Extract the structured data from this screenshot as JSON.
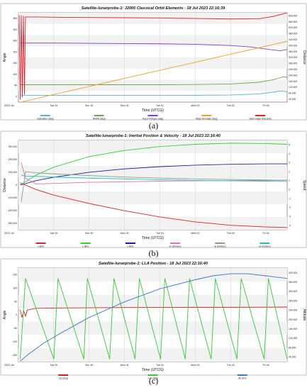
{
  "captions": [
    "(a)",
    "(b)",
    "(c)"
  ],
  "chart_data": [
    {
      "type": "line",
      "title": "Satellite-lunarprobe-1:  J2000 Classical Orbit Elements - 18 Jul 2023 22:16:39",
      "xlabel": "Time (UTCG)",
      "ylabel": "Angle",
      "y2label": "Distance",
      "year_label": "2023 Jul",
      "x_ticks": [
        "Sat 29",
        "Sun 30",
        "Mon 31",
        "Tue 01",
        "Wed 02",
        "Thu 03",
        "Fri 04"
      ],
      "y_ticks": [
        "0",
        "50",
        "100",
        "150",
        "200",
        "250",
        "300",
        "350"
      ],
      "y2_ticks": [
        "40,000",
        "80,000",
        "120,000",
        "160,000",
        "200,000",
        "240,000",
        "280,000",
        "320,000",
        "360,000",
        "400,000",
        "440,000",
        "480,000",
        "520,000",
        "560,000",
        "600,000"
      ],
      "xlim": [
        0,
        7.6
      ],
      "ylim": [
        0,
        360
      ],
      "grid": true,
      "legend_position": "bottom",
      "series": [
        {
          "name": "Inclination (deg)",
          "color": "#4fb4e0",
          "x": [
            0.05,
            0.4,
            1,
            2,
            3,
            4,
            5,
            6,
            6.8,
            7.2,
            7.4,
            7.6
          ],
          "y": [
            28,
            27,
            27,
            27,
            27,
            27,
            27.5,
            28.5,
            33,
            40,
            45,
            42
          ]
        },
        {
          "name": "RAAN (deg)",
          "color": "#6aa84f",
          "x": [
            0.05,
            0.4,
            1,
            2,
            3,
            4,
            5,
            6,
            6.8,
            7.2,
            7.5,
            7.6
          ],
          "y": [
            70,
            70,
            70,
            70,
            70,
            70,
            71,
            73,
            80,
            90,
            102,
            100
          ]
        },
        {
          "name": "Arg of Perigee (deg)",
          "color": "#7e3fc4",
          "x": [
            0.05,
            0.4,
            1,
            2,
            3,
            4,
            5,
            6,
            6.6,
            7.1,
            7.4,
            7.6
          ],
          "y": [
            238,
            238,
            238,
            237,
            236,
            235,
            233,
            228,
            222,
            212,
            207,
            212
          ]
        },
        {
          "name": "Mean Anomaly (deg)",
          "color": "#f0a020",
          "x": [
            0.12,
            7.6
          ],
          "y": [
            2,
            245
          ]
        },
        {
          "name": "Semi-major Axis (km)",
          "color": "#e0202a",
          "axis": "right",
          "x": [
            0.02,
            0.05,
            0.08,
            0.11,
            0.14,
            0.17,
            0.2,
            0.5,
            1,
            2,
            3,
            4,
            5,
            6,
            6.8,
            7.2,
            7.6
          ],
          "y": [
            350,
            10,
            350,
            20,
            348,
            30,
            343,
            343,
            342,
            341,
            340,
            339,
            337,
            335,
            336,
            345,
            360
          ]
        }
      ]
    },
    {
      "type": "line",
      "title": "Satellite-lunarprobe-1:  Inertial Position & Velocity - 18 Jul 2023 22:16:40",
      "xlabel": "Time (UTCG)",
      "ylabel": "Distance",
      "y2label": "Speed",
      "year_label": "2023 Jul",
      "x_ticks": [
        "Sat 29",
        "Sun 30",
        "Mon 31",
        "Tue 01",
        "Wed 02",
        "Thu 03",
        "Fri 04"
      ],
      "y_ticks": [
        "-300,000",
        "-200,000",
        "-100,000",
        "0",
        "100,000",
        "200,000",
        "300,000"
      ],
      "y2_ticks": [
        "-4",
        "-3",
        "-2",
        "-1",
        "0",
        "1",
        "2",
        "3",
        "4",
        "5"
      ],
      "xlim": [
        0,
        7.6
      ],
      "ylim": [
        -400000,
        400000
      ],
      "grid": true,
      "legend_position": "bottom",
      "series": [
        {
          "name": "x (km)",
          "color": "#e02020",
          "x": [
            0.05,
            0.5,
            1,
            2,
            3,
            4,
            5,
            6,
            7,
            7.6
          ],
          "y": [
            20000,
            -40000,
            -90000,
            -165000,
            -230000,
            -285000,
            -330000,
            -360000,
            -375000,
            -380000
          ]
        },
        {
          "name": "y (km)",
          "color": "#33d033",
          "x": [
            0.05,
            0.5,
            1,
            2,
            3,
            4,
            5,
            6,
            7,
            7.6
          ],
          "y": [
            0,
            90000,
            160000,
            255000,
            310000,
            345000,
            365000,
            375000,
            372000,
            365000
          ]
        },
        {
          "name": "z (km)",
          "color": "#1a1aa0",
          "x": [
            0.05,
            0.5,
            1,
            2,
            3,
            4,
            5,
            6,
            7,
            7.6
          ],
          "y": [
            0,
            40000,
            70000,
            115000,
            145000,
            165000,
            178000,
            186000,
            190000,
            190000
          ]
        },
        {
          "name": "vx (km/sec)",
          "color": "#e070b0",
          "x": [
            0.08,
            0.2,
            0.5,
            1,
            2,
            3,
            4,
            5,
            6,
            7,
            7.6
          ],
          "y": [
            200000,
            60000,
            10000,
            15000,
            25000,
            30000,
            35000,
            38000,
            40000,
            42000,
            43000
          ]
        },
        {
          "name": "vy (km/sec)",
          "color": "#88a080",
          "x": [
            0.08,
            0.2,
            0.5,
            1,
            2,
            3,
            4,
            5,
            6,
            7,
            7.6
          ],
          "y": [
            -150000,
            120000,
            110000,
            100000,
            85000,
            72000,
            62000,
            55000,
            50000,
            46000,
            45000
          ]
        },
        {
          "name": "vz (km/sec)",
          "color": "#20c0c0",
          "x": [
            0.08,
            0.2,
            0.5,
            1,
            2,
            3,
            4,
            5,
            6,
            7,
            7.6
          ],
          "y": [
            90000,
            80000,
            78000,
            72000,
            62000,
            55000,
            48000,
            42000,
            38000,
            35000,
            33000
          ]
        }
      ]
    },
    {
      "type": "line",
      "title": "Satellite-lunarprobe-1:  LLA Position - 18 Jul 2023 22:16:40",
      "xlabel": "Time (UTCG)",
      "ylabel": "Angle",
      "y2label": "Altitude",
      "year_label": "2023 Jul",
      "x_ticks": [
        "Sat 29",
        "Sun 30",
        "Mon 31",
        "Tue 01",
        "Wed 02",
        "Thu 03",
        "Fri 04"
      ],
      "y_ticks": [
        "-150",
        "-100",
        "-50",
        "0",
        "50",
        "100",
        "150"
      ],
      "y2_ticks": [
        "40,000",
        "80,000",
        "120,000",
        "160,000",
        "200,000",
        "240,000",
        "280,000",
        "320,000",
        "360,000",
        "400,000"
      ],
      "xlim": [
        0,
        7.6
      ],
      "ylim": [
        -180,
        180
      ],
      "grid": true,
      "legend_position": "bottom",
      "series": [
        {
          "name": "Lat (deg)",
          "color": "#d02020",
          "x": [
            0.05,
            0.1,
            0.15,
            0.2,
            0.25,
            0.3,
            0.5,
            1,
            2,
            3,
            4,
            5,
            6,
            7,
            7.6
          ],
          "y": [
            20,
            -10,
            15,
            -5,
            18,
            20,
            25,
            26,
            27,
            28,
            28.5,
            29,
            29,
            29.5,
            30
          ]
        },
        {
          "name": "Lon (deg)",
          "color": "#33cc33",
          "x": [
            0.05,
            0.2,
            1.0,
            1.12,
            1.85,
            1.95,
            2.58,
            2.7,
            3.3,
            3.42,
            4.02,
            4.14,
            4.72,
            4.84,
            5.45,
            5.57,
            6.18,
            6.3,
            6.95,
            7.07,
            7.6
          ],
          "y": [
            -170,
            140,
            -170,
            140,
            -170,
            140,
            -170,
            140,
            -170,
            140,
            -170,
            140,
            -170,
            140,
            -170,
            140,
            -170,
            140,
            -170,
            140,
            -170
          ]
        },
        {
          "name": "Alt (km)",
          "color": "#3a78c8",
          "axis": "right",
          "x": [
            0.05,
            0.3,
            0.7,
            1.2,
            2,
            3,
            4,
            5,
            5.5,
            6,
            6.5,
            7,
            7.6
          ],
          "y": [
            -178,
            -150,
            -110,
            -70,
            -10,
            50,
            100,
            135,
            150,
            158,
            158,
            150,
            140
          ]
        }
      ]
    }
  ]
}
